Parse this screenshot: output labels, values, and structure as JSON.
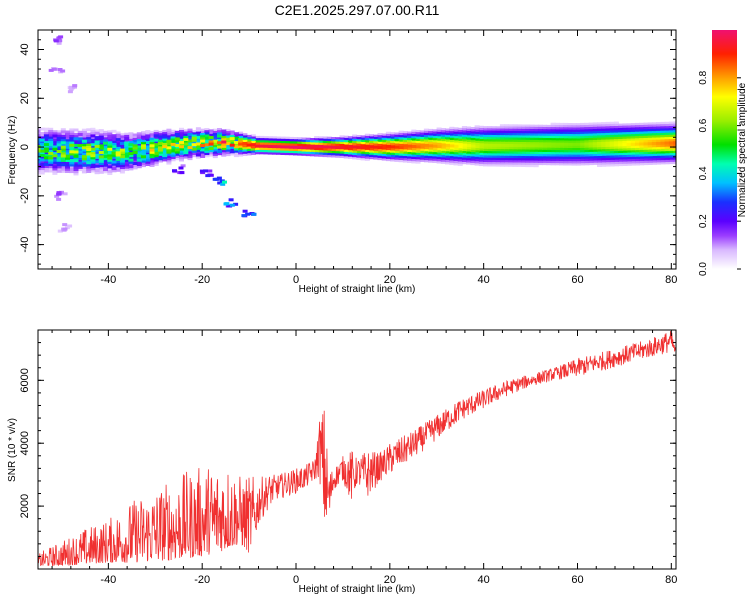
{
  "figure": {
    "title": "C2E1.2025.297.07.00.R11"
  },
  "chart_data": [
    {
      "type": "heatmap",
      "title": "C2E1.2025.297.07.00.R11",
      "xlabel": "Height of straight line (km)",
      "ylabel": "Frequency (Hz)",
      "xlim": [
        -55,
        81
      ],
      "ylim": [
        -50,
        48
      ],
      "xticks": [
        -40,
        -20,
        0,
        20,
        40,
        60,
        80
      ],
      "yticks": [
        -40,
        -20,
        0,
        20,
        40
      ],
      "xtick_labels": [
        "-40",
        "-20",
        "0",
        "20",
        "40",
        "60",
        "80"
      ],
      "ytick_labels": [
        "-40",
        "-20",
        "0",
        "20",
        "40"
      ],
      "colorbar": {
        "label": "Normalized spectral amplitude",
        "range": [
          0,
          1
        ],
        "ticks": [
          0.0,
          0.2,
          0.4,
          0.6,
          0.8
        ],
        "tick_labels": [
          "0.0",
          "0.2",
          "0.4",
          "0.6",
          "0.8"
        ]
      },
      "ridge": [
        {
          "x": -55,
          "f": -1.5,
          "amp": 0.55,
          "spread": 7
        },
        {
          "x": -45,
          "f": -2,
          "amp": 0.6,
          "spread": 7
        },
        {
          "x": -35,
          "f": -2,
          "amp": 0.6,
          "spread": 6
        },
        {
          "x": -25,
          "f": 1,
          "amp": 0.7,
          "spread": 5
        },
        {
          "x": -15,
          "f": 2,
          "amp": 0.8,
          "spread": 4
        },
        {
          "x": -8,
          "f": 0.5,
          "amp": 0.95,
          "spread": 2.5
        },
        {
          "x": 0,
          "f": 0,
          "amp": 1.0,
          "spread": 2.5
        },
        {
          "x": 10,
          "f": 0,
          "amp": 0.95,
          "spread": 3
        },
        {
          "x": 20,
          "f": 0,
          "amp": 0.9,
          "spread": 4
        },
        {
          "x": 30,
          "f": 0.5,
          "amp": 0.8,
          "spread": 5
        },
        {
          "x": 40,
          "f": 0.5,
          "amp": 0.65,
          "spread": 6
        },
        {
          "x": 60,
          "f": 1,
          "amp": 0.6,
          "spread": 6.5
        },
        {
          "x": 81,
          "f": 1.5,
          "amp": 0.85,
          "spread": 6
        }
      ],
      "outliers": [
        {
          "x": -51,
          "f": 44,
          "amp": 0.15
        },
        {
          "x": -51,
          "f": 31,
          "amp": 0.12
        },
        {
          "x": -50,
          "f": -20,
          "amp": 0.15
        },
        {
          "x": -48,
          "f": 24,
          "amp": 0.1
        },
        {
          "x": -49,
          "f": -33,
          "amp": 0.1
        },
        {
          "x": -16,
          "f": -14,
          "amp": 0.4
        },
        {
          "x": -14,
          "f": -23,
          "amp": 0.35
        },
        {
          "x": -10,
          "f": -27,
          "amp": 0.3
        },
        {
          "x": -19,
          "f": -11,
          "amp": 0.3
        },
        {
          "x": -25,
          "f": -9,
          "amp": 0.2
        }
      ]
    },
    {
      "type": "line",
      "xlabel": "Height of straight line (km)",
      "ylabel": "SNR (10 * v/v)",
      "xlim": [
        -55,
        81
      ],
      "ylim": [
        0,
        7600
      ],
      "xticks": [
        -40,
        -20,
        0,
        20,
        40,
        60,
        80
      ],
      "yticks": [
        2000,
        4000,
        6000
      ],
      "xtick_labels": [
        "-40",
        "-20",
        "0",
        "20",
        "40",
        "60",
        "80"
      ],
      "ytick_labels": [
        "2000",
        "4000",
        "6000"
      ],
      "color": "#f03030",
      "x": [
        -55,
        -50,
        -45,
        -40,
        -35,
        -30,
        -25,
        -20,
        -15,
        -12,
        -10,
        -8,
        -6,
        -4,
        -2,
        0,
        2,
        4,
        5,
        6,
        7,
        8,
        10,
        12,
        13,
        15,
        18,
        20,
        25,
        30,
        35,
        40,
        45,
        50,
        55,
        60,
        65,
        70,
        75,
        80,
        81
      ],
      "envelope_low": [
        80,
        100,
        150,
        200,
        200,
        250,
        300,
        400,
        600,
        800,
        500,
        1400,
        1900,
        2200,
        2300,
        2400,
        2550,
        2800,
        2900,
        1100,
        1200,
        2500,
        2800,
        2000,
        2700,
        2200,
        2800,
        3000,
        3500,
        4100,
        4700,
        5100,
        5500,
        5800,
        6000,
        6100,
        6300,
        6500,
        6700,
        6900,
        6750
      ],
      "envelope_high": [
        500,
        900,
        1300,
        1600,
        2200,
        2600,
        3000,
        3300,
        3500,
        3000,
        3000,
        2900,
        3000,
        3000,
        3100,
        3200,
        3300,
        3500,
        4800,
        5200,
        3200,
        3200,
        3600,
        3800,
        3500,
        3800,
        3700,
        4000,
        4400,
        4900,
        5400,
        5700,
        6000,
        6200,
        6400,
        6700,
        6900,
        7100,
        7300,
        7600,
        7000
      ]
    }
  ]
}
